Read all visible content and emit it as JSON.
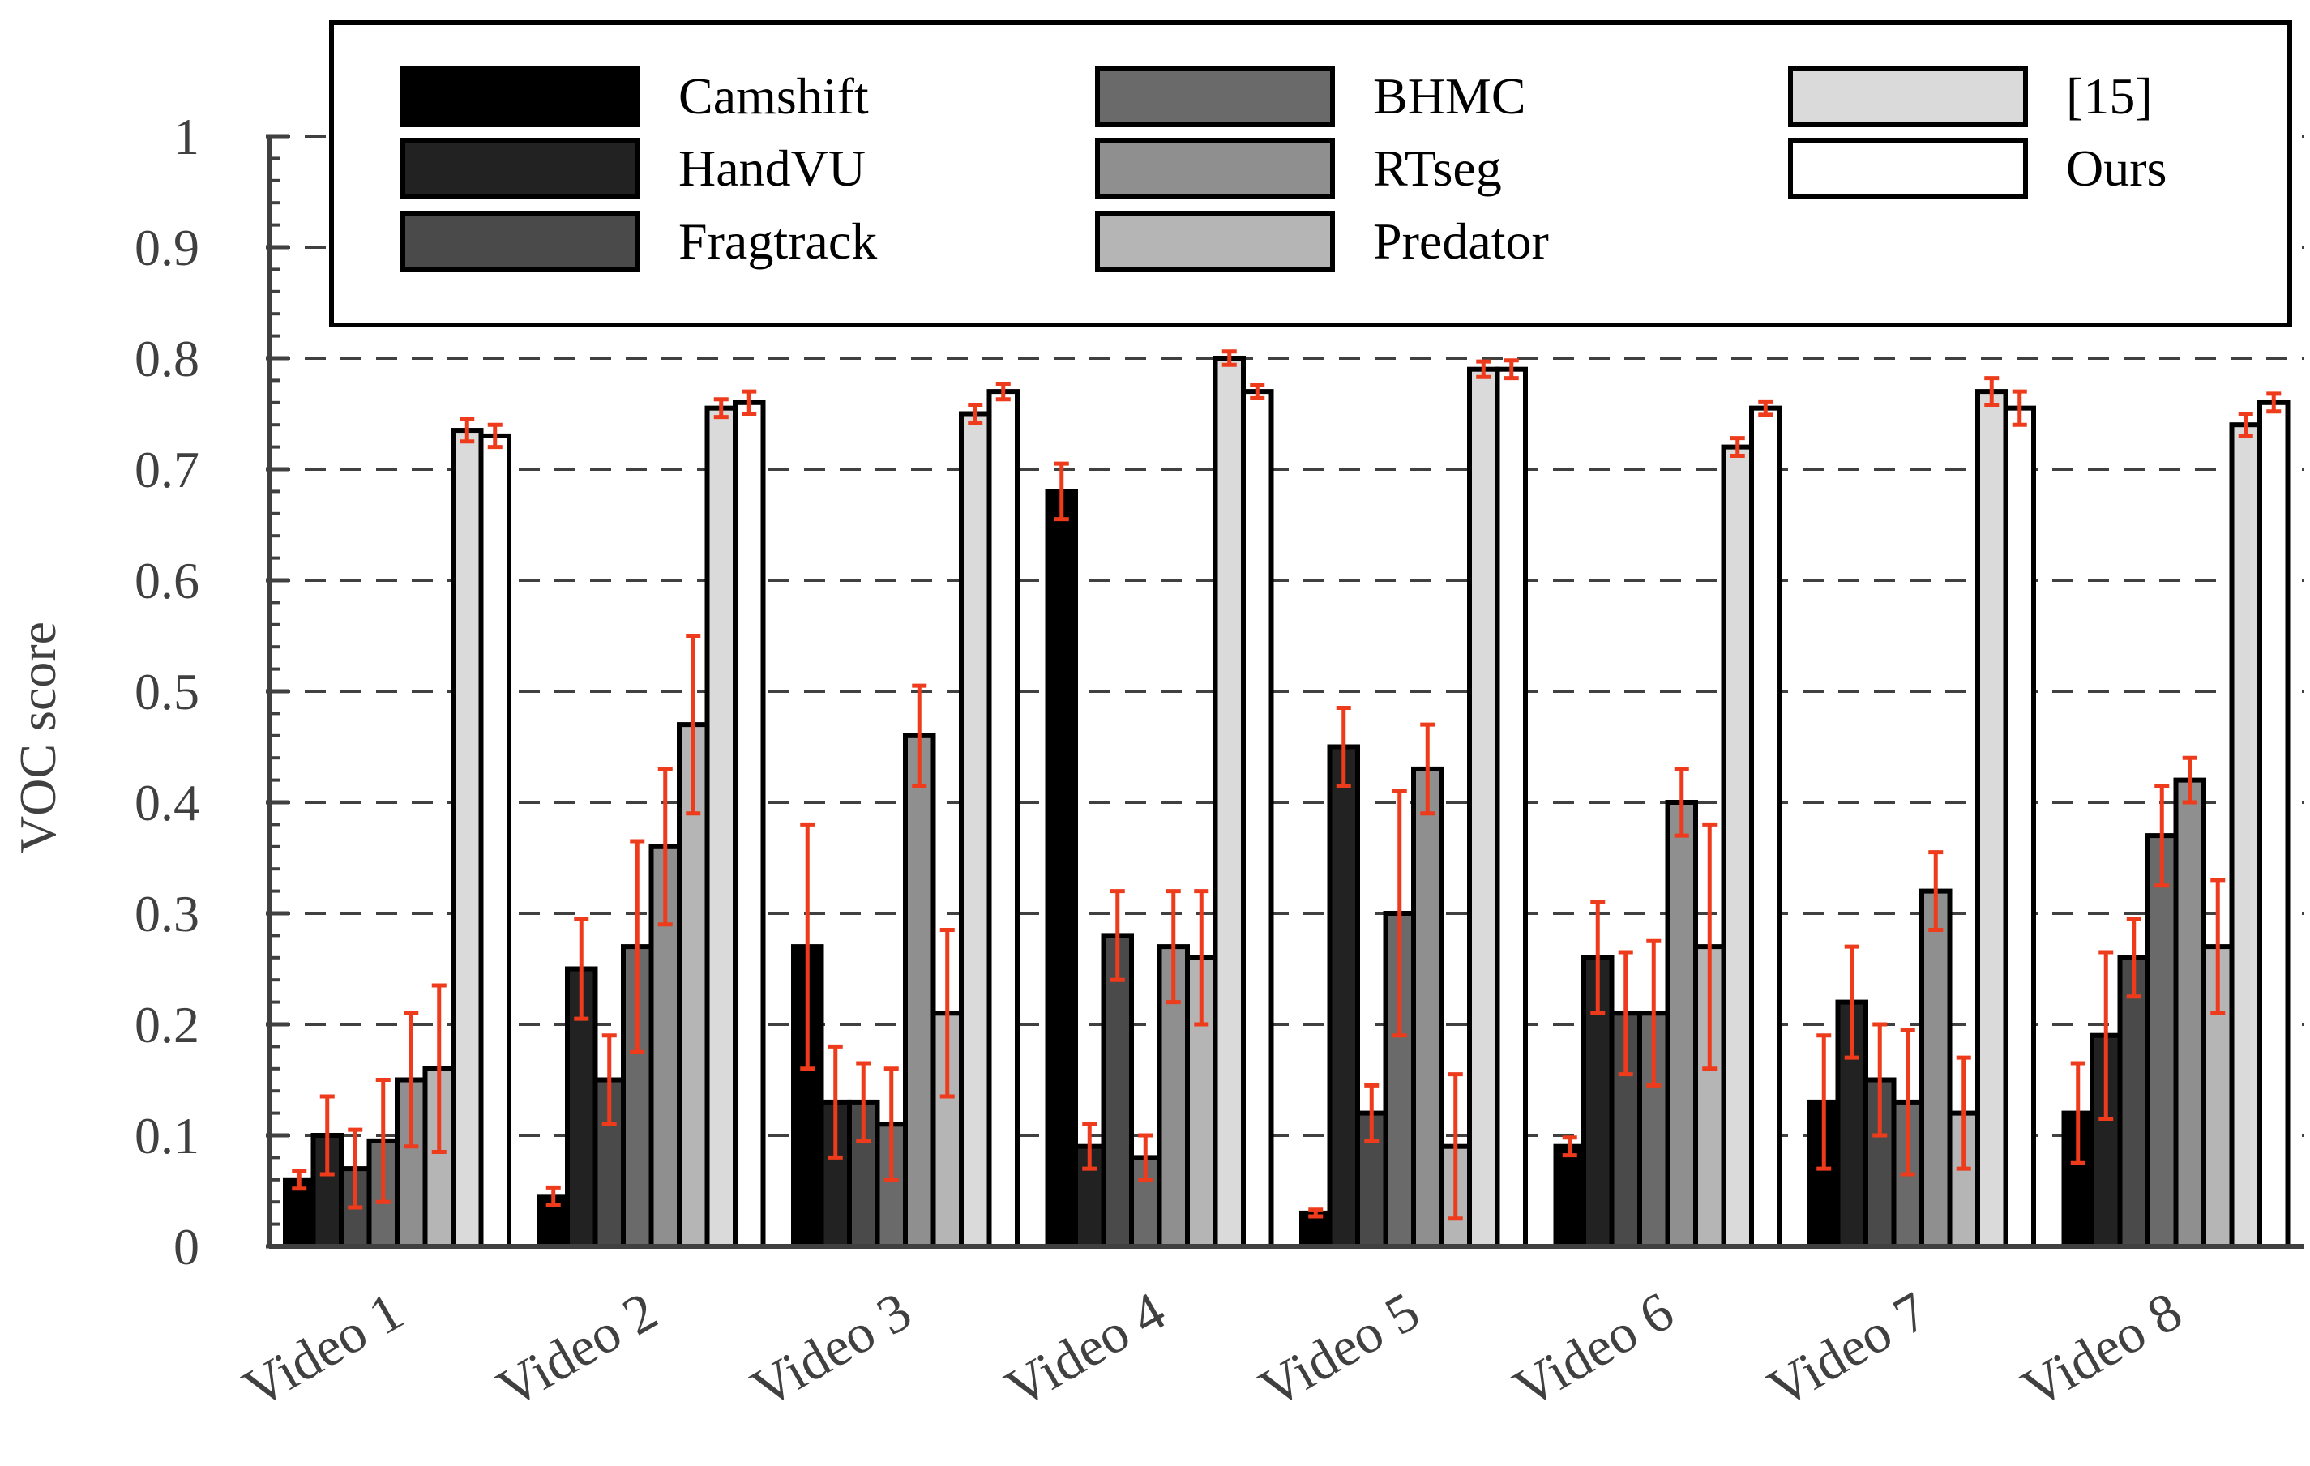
{
  "chart_data": {
    "type": "bar",
    "title": "",
    "xlabel": "",
    "ylabel": "VOC score",
    "ylim": [
      0,
      1
    ],
    "yticks": [
      "0",
      "0.1",
      "0.2",
      "0.3",
      "0.4",
      "0.5",
      "0.6",
      "0.7",
      "0.8",
      "0.9",
      "1"
    ],
    "grid": "horizontal dashed",
    "legend_position": "top",
    "categories": [
      "Video 1",
      "Video 2",
      "Video 3",
      "Video 4",
      "Video 5",
      "Video 6",
      "Video 7",
      "Video 8"
    ],
    "series": [
      {
        "name": "Camshift",
        "color": "#000000",
        "values": [
          0.06,
          0.045,
          0.27,
          0.68,
          0.03,
          0.09,
          0.13,
          0.12
        ],
        "errors": [
          0.008,
          0.008,
          0.11,
          0.025,
          0.003,
          0.008,
          0.06,
          0.045
        ]
      },
      {
        "name": "HandVU",
        "color": "#222222",
        "values": [
          0.1,
          0.25,
          0.13,
          0.09,
          0.45,
          0.26,
          0.22,
          0.19
        ],
        "errors": [
          0.035,
          0.045,
          0.05,
          0.02,
          0.035,
          0.05,
          0.05,
          0.075
        ]
      },
      {
        "name": "Fragtrack",
        "color": "#4a4a4a",
        "values": [
          0.07,
          0.15,
          0.13,
          0.28,
          0.12,
          0.21,
          0.15,
          0.26
        ],
        "errors": [
          0.035,
          0.04,
          0.035,
          0.04,
          0.025,
          0.055,
          0.05,
          0.035
        ]
      },
      {
        "name": "BHMC",
        "color": "#6a6a6a",
        "values": [
          0.095,
          0.27,
          0.11,
          0.08,
          0.3,
          0.21,
          0.13,
          0.37
        ],
        "errors": [
          0.055,
          0.095,
          0.05,
          0.02,
          0.11,
          0.065,
          0.065,
          0.045
        ]
      },
      {
        "name": "RTseg",
        "color": "#8f8f8f",
        "values": [
          0.15,
          0.36,
          0.46,
          0.27,
          0.43,
          0.4,
          0.32,
          0.42
        ],
        "errors": [
          0.06,
          0.07,
          0.045,
          0.05,
          0.04,
          0.03,
          0.035,
          0.02
        ]
      },
      {
        "name": "Predator",
        "color": "#b5b5b5",
        "values": [
          0.16,
          0.47,
          0.21,
          0.26,
          0.09,
          0.27,
          0.12,
          0.27
        ],
        "errors": [
          0.075,
          0.08,
          0.075,
          0.06,
          0.065,
          0.11,
          0.05,
          0.06
        ]
      },
      {
        "name": "[15]",
        "color": "#dadada",
        "values": [
          0.735,
          0.755,
          0.75,
          0.8,
          0.79,
          0.72,
          0.77,
          0.74
        ],
        "errors": [
          0.01,
          0.008,
          0.008,
          0.006,
          0.007,
          0.008,
          0.012,
          0.01
        ]
      },
      {
        "name": "Ours",
        "color": "#ffffff",
        "values": [
          0.73,
          0.76,
          0.77,
          0.77,
          0.79,
          0.755,
          0.755,
          0.76
        ],
        "errors": [
          0.01,
          0.01,
          0.007,
          0.006,
          0.008,
          0.006,
          0.015,
          0.008
        ]
      }
    ]
  }
}
